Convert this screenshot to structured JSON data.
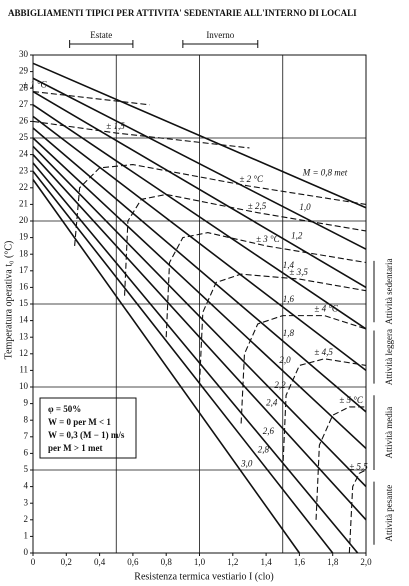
{
  "chart_data": {
    "type": "line",
    "title": "ABBIGLIAMENTI TIPICI PER ATTIVITA' SEDENTARIE ALL'INTERNO DI LOCALI",
    "xlabel": "Resistenza termica vestiario I (clo)",
    "ylabel": "Temperatura operativa t₀ (°C)",
    "xlim": [
      0,
      2
    ],
    "ylim": [
      0,
      30
    ],
    "xticks": [
      0,
      {
        "value": 0.2,
        "label": "0,2"
      },
      {
        "value": 0.4,
        "label": "0,4"
      },
      {
        "value": 0.6,
        "label": "0,6"
      },
      {
        "value": 0.8,
        "label": "0,8"
      },
      {
        "value": 1,
        "label": "1,0"
      },
      {
        "value": 1.2,
        "label": "1,2"
      },
      {
        "value": 1.4,
        "label": "1,4"
      },
      {
        "value": 1.6,
        "label": "1,6"
      },
      {
        "value": 1.8,
        "label": "1,8"
      },
      {
        "value": 2,
        "label": "2,0"
      }
    ],
    "yticks": [
      0,
      1,
      2,
      3,
      4,
      5,
      6,
      7,
      8,
      9,
      10,
      11,
      12,
      13,
      14,
      15,
      16,
      17,
      18,
      19,
      20,
      21,
      22,
      23,
      24,
      25,
      26,
      27,
      28,
      29,
      30
    ],
    "xgrid": [
      0.5,
      1,
      1.5
    ],
    "ygrid": [
      5,
      10,
      15,
      20,
      25,
      30
    ],
    "seasons": [
      {
        "label": "Estate",
        "range": [
          0.22,
          0.6
        ]
      },
      {
        "label": "Inverno",
        "range": [
          0.9,
          1.35
        ]
      }
    ],
    "activities": [
      {
        "label": "Attività sedentaria",
        "range": [
          13.9,
          17.6
        ]
      },
      {
        "label": "Attività leggera",
        "range": [
          10.2,
          13.4
        ]
      },
      {
        "label": "Attività media",
        "range": [
          5,
          9.5
        ]
      },
      {
        "label": "Attività pesante",
        "range": [
          0.5,
          4.3
        ]
      }
    ],
    "notes": [
      "φ = 50%",
      "W = 0 per M < 1",
      "W = 0,3 (M − 1) m/s",
      "per M > 1 met"
    ],
    "series": [
      {
        "name": "M = 0,8 met",
        "style": "solid",
        "x": [
          0,
          2
        ],
        "values": [
          29.5,
          20.8
        ]
      },
      {
        "name": "1,0",
        "style": "solid",
        "x": [
          0,
          2
        ],
        "values": [
          28.6,
          18.3
        ]
      },
      {
        "name": "1,2",
        "style": "solid",
        "x": [
          0,
          2
        ],
        "values": [
          27.8,
          16
        ]
      },
      {
        "name": "1,4",
        "style": "solid",
        "x": [
          0,
          2
        ],
        "values": [
          27,
          13.5
        ]
      },
      {
        "name": "1,6",
        "style": "solid",
        "x": [
          0,
          2
        ],
        "values": [
          26.3,
          11
        ]
      },
      {
        "name": "1,8",
        "style": "solid",
        "x": [
          0,
          2
        ],
        "values": [
          25.6,
          8.5
        ]
      },
      {
        "name": "2,0",
        "style": "solid",
        "x": [
          0,
          2
        ],
        "values": [
          25,
          6.3
        ]
      },
      {
        "name": "2,2",
        "style": "solid",
        "x": [
          0,
          2
        ],
        "values": [
          24.5,
          4
        ]
      },
      {
        "name": "2,4",
        "style": "solid",
        "x": [
          0,
          2
        ],
        "values": [
          24,
          2
        ]
      },
      {
        "name": "2,6",
        "style": "solid",
        "x": [
          0,
          1.95
        ],
        "values": [
          23.5,
          0
        ]
      },
      {
        "name": "2,8",
        "style": "solid",
        "x": [
          0,
          1.8
        ],
        "values": [
          23,
          0
        ]
      },
      {
        "name": "3,0",
        "style": "solid",
        "x": [
          0,
          1.6
        ],
        "values": [
          22.5,
          0
        ]
      },
      {
        "name": "± 1 °C",
        "style": "dashed",
        "x": [
          0,
          0.7
        ],
        "values": [
          27.8,
          27
        ]
      },
      {
        "name": "± 1,5",
        "style": "dashed",
        "x": [
          0,
          0.5,
          1.3
        ],
        "values": [
          26,
          25.3,
          24.4
        ]
      },
      {
        "name": "± 2 °C",
        "style": "dashed",
        "x": [
          0.25,
          0.28,
          0.4,
          0.6,
          1.3,
          2
        ],
        "values": [
          18.5,
          22,
          23.2,
          23.4,
          22.1,
          21
        ]
      },
      {
        "name": "± 2,5",
        "style": "dashed",
        "x": [
          0.55,
          0.57,
          0.65,
          0.8,
          1.35,
          2
        ],
        "values": [
          15.5,
          20,
          21.3,
          21.6,
          20.5,
          19.4
        ]
      },
      {
        "name": "± 3 °C",
        "style": "dashed",
        "x": [
          0.8,
          0.82,
          0.9,
          1.05,
          1.4,
          2
        ],
        "values": [
          13,
          17.5,
          19,
          19.3,
          18.5,
          17.5
        ]
      },
      {
        "name": "± 3,5",
        "style": "dashed",
        "x": [
          1,
          1.02,
          1.1,
          1.25,
          1.6,
          2
        ],
        "values": [
          10.2,
          14.5,
          16.3,
          16.8,
          16.5,
          15.8
        ]
      },
      {
        "name": "± 4 °C",
        "style": "dashed",
        "x": [
          1.25,
          1.27,
          1.35,
          1.5,
          1.75,
          2
        ],
        "values": [
          7.8,
          12,
          13.8,
          14.3,
          14.3,
          13.5
        ]
      },
      {
        "name": "± 4,5",
        "style": "dashed",
        "x": [
          1.5,
          1.52,
          1.6,
          1.75,
          2
        ],
        "values": [
          5,
          9.5,
          11.3,
          11.7,
          11.3
        ]
      },
      {
        "name": "± 5 °C",
        "style": "dashed",
        "x": [
          1.7,
          1.72,
          1.8,
          1.9,
          2
        ],
        "values": [
          2,
          6.5,
          8.3,
          8.8,
          8.8
        ]
      },
      {
        "name": "± 5,5",
        "style": "dashed",
        "x": [
          1.9,
          1.92,
          1.96,
          2
        ],
        "values": [
          0,
          4,
          4.8,
          5
        ]
      }
    ]
  }
}
